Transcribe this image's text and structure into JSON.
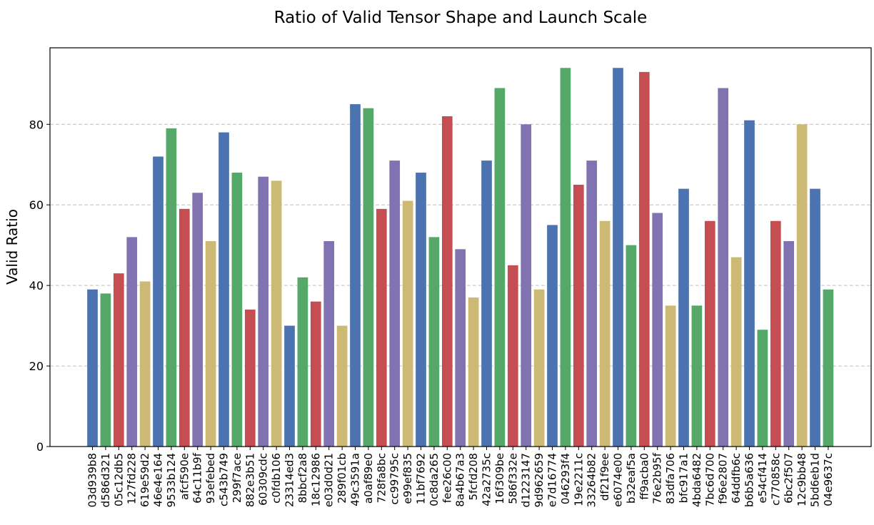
{
  "chart_data": {
    "type": "bar",
    "title": "Ratio of Valid Tensor Shape and Launch Scale",
    "xlabel": "",
    "ylabel": "Valid Ratio",
    "ylim": [
      0,
      99
    ],
    "yticks": [
      0,
      20,
      40,
      60,
      80
    ],
    "grid": "y-dashed",
    "palette": [
      "#4c72b0",
      "#55a868",
      "#c44e52",
      "#8172b2",
      "#ccb974"
    ],
    "categories": [
      "03d939b8",
      "d586d321",
      "05c12db5",
      "127fd228",
      "619e59d2",
      "46e4e164",
      "9533b124",
      "afcf590e",
      "64c11b9f",
      "93efebed",
      "c543b749",
      "299f7ace",
      "882e3b51",
      "60309cdc",
      "c0fdb106",
      "23314ed3",
      "8bbcf2a8",
      "18c12986",
      "e03d0d21",
      "289f01cb",
      "49c3591a",
      "a0af89e0",
      "728fa8bc",
      "cc99795c",
      "e99ef835",
      "11bf7692",
      "0c8da265",
      "fee26c00",
      "8a4b67a3",
      "5fcfd208",
      "42a2735c",
      "16f309be",
      "586f332e",
      "d1223147",
      "9d962659",
      "e7d16774",
      "046293f4",
      "19e2211c",
      "33264b82",
      "df21f9ee",
      "e6074e00",
      "b32eaf5a",
      "ff9acba0",
      "76e2b95f",
      "83dfa706",
      "bfc917a1",
      "4bda6482",
      "7bc6d700",
      "f96e2807",
      "64ddfb6c",
      "b6b5a636",
      "e54cf414",
      "c770858c",
      "6bc2f507",
      "12c9bb48",
      "5bd6eb1d",
      "04e9637c"
    ],
    "values": [
      39,
      38,
      43,
      52,
      41,
      72,
      79,
      59,
      63,
      51,
      78,
      68,
      34,
      67,
      66,
      30,
      42,
      36,
      51,
      30,
      85,
      84,
      59,
      71,
      61,
      68,
      52,
      82,
      49,
      37,
      71,
      89,
      45,
      80,
      39,
      55,
      94,
      65,
      71,
      56,
      94,
      50,
      93,
      58,
      35,
      64,
      35,
      56,
      89,
      47,
      81,
      29,
      56,
      51,
      80,
      64,
      39
    ]
  }
}
